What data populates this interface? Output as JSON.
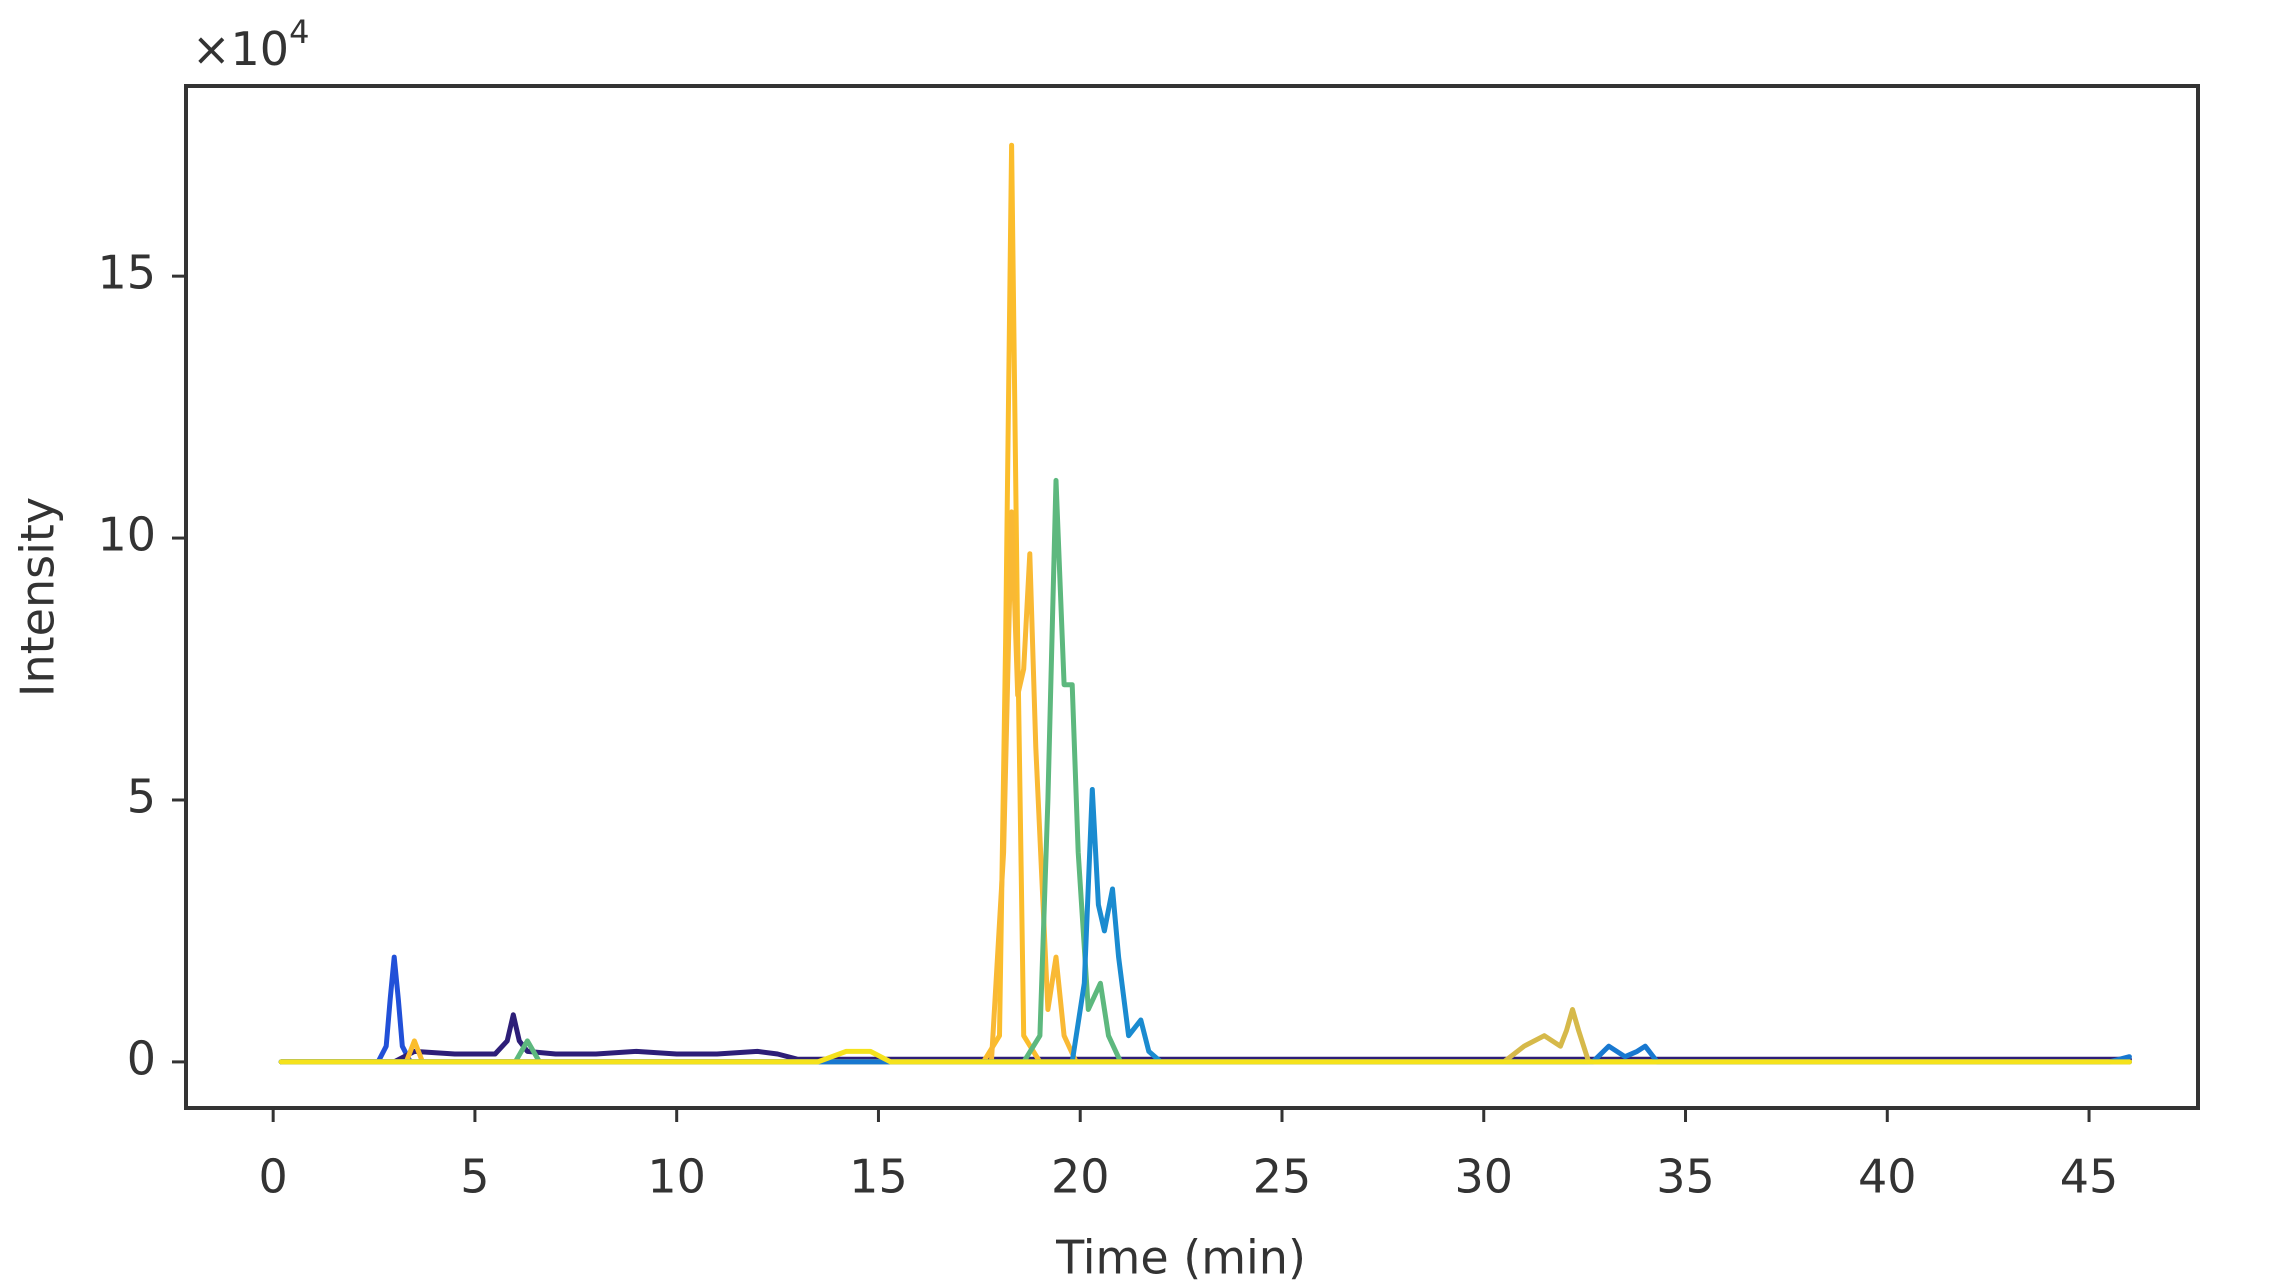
{
  "chart_data": {
    "type": "line",
    "x_label": "Time (min)",
    "y_label": "Intensity",
    "y_multiplier": {
      "base": "×10",
      "exponent": "4"
    },
    "xlim": [
      -2.16,
      47.7
    ],
    "xticks": [
      0,
      5,
      10,
      15,
      20,
      25,
      30,
      35,
      40,
      45
    ],
    "ylim": [
      -0.88,
      18.63
    ],
    "yticks": [
      0,
      5,
      10,
      15
    ],
    "grid": false,
    "series": [
      {
        "color": "#2150d8",
        "x": [
          0.2,
          2.6,
          2.8,
          2.9,
          3.0,
          3.1,
          3.2,
          3.4,
          46
        ],
        "values": [
          0,
          0,
          0.3,
          1.2,
          2.0,
          1.2,
          0.3,
          0,
          0
        ]
      },
      {
        "color": "#2d1e78",
        "x": [
          0.2,
          3.0,
          3.5,
          4.5,
          5.5,
          5.8,
          5.95,
          6.1,
          6.3,
          7,
          8,
          9,
          10,
          11,
          12,
          12.5,
          13,
          46
        ],
        "values": [
          0,
          0,
          0.2,
          0.15,
          0.15,
          0.4,
          0.9,
          0.4,
          0.2,
          0.15,
          0.15,
          0.2,
          0.15,
          0.15,
          0.2,
          0.15,
          0.05,
          0.05
        ]
      },
      {
        "color": "#fbbd2c",
        "x": [
          0.2,
          3.3,
          3.5,
          3.7,
          17.6,
          18.0,
          18.15,
          18.3,
          18.45,
          18.6,
          19.0,
          46
        ],
        "values": [
          0,
          0,
          0.4,
          0,
          0,
          0.5,
          8,
          17.5,
          8,
          0.5,
          0,
          0
        ]
      },
      {
        "color": "#f9b934",
        "x": [
          0.2,
          17.8,
          18.1,
          18.3,
          18.45,
          18.6,
          18.75,
          18.9,
          19.2,
          19.4,
          19.6,
          19.9,
          46
        ],
        "values": [
          0,
          0,
          4,
          10.5,
          7,
          7.5,
          9.7,
          6,
          1,
          2,
          0.5,
          0,
          0
        ]
      },
      {
        "color": "#5db87e",
        "x": [
          0.2,
          6.0,
          6.3,
          6.6,
          18.6,
          19.0,
          19.2,
          19.4,
          19.6,
          19.8,
          19.95,
          20.2,
          20.5,
          20.7,
          21,
          46
        ],
        "values": [
          0,
          0,
          0.4,
          0,
          0,
          0.5,
          5,
          11.1,
          7.2,
          7.2,
          4,
          1,
          1.5,
          0.5,
          0,
          0
        ]
      },
      {
        "color": "#1a8bd0",
        "x": [
          0.2,
          19.8,
          20.1,
          20.3,
          20.45,
          20.6,
          20.8,
          20.95,
          21.2,
          21.5,
          21.7,
          22,
          46
        ],
        "values": [
          0,
          0,
          1.5,
          5.2,
          3.0,
          2.5,
          3.3,
          2.0,
          0.5,
          0.8,
          0.2,
          0,
          0
        ]
      },
      {
        "color": "#d6b94a",
        "x": [
          0.2,
          30.5,
          31.0,
          31.5,
          31.9,
          32.05,
          32.2,
          32.35,
          32.6,
          46
        ],
        "values": [
          0,
          0,
          0.3,
          0.5,
          0.3,
          0.6,
          1.0,
          0.6,
          0,
          0
        ]
      },
      {
        "color": "#1878d0",
        "x": [
          0.2,
          32.7,
          33.1,
          33.5,
          33.8,
          34.0,
          34.3,
          45.5,
          46
        ],
        "values": [
          0,
          0,
          0.3,
          0.1,
          0.2,
          0.3,
          0,
          0,
          0.1
        ]
      },
      {
        "color": "#f5e21c",
        "x": [
          0.2,
          13.5,
          14.2,
          14.5,
          14.8,
          15.3,
          46
        ],
        "values": [
          0,
          0,
          0.2,
          0.2,
          0.2,
          0,
          0
        ]
      }
    ]
  }
}
